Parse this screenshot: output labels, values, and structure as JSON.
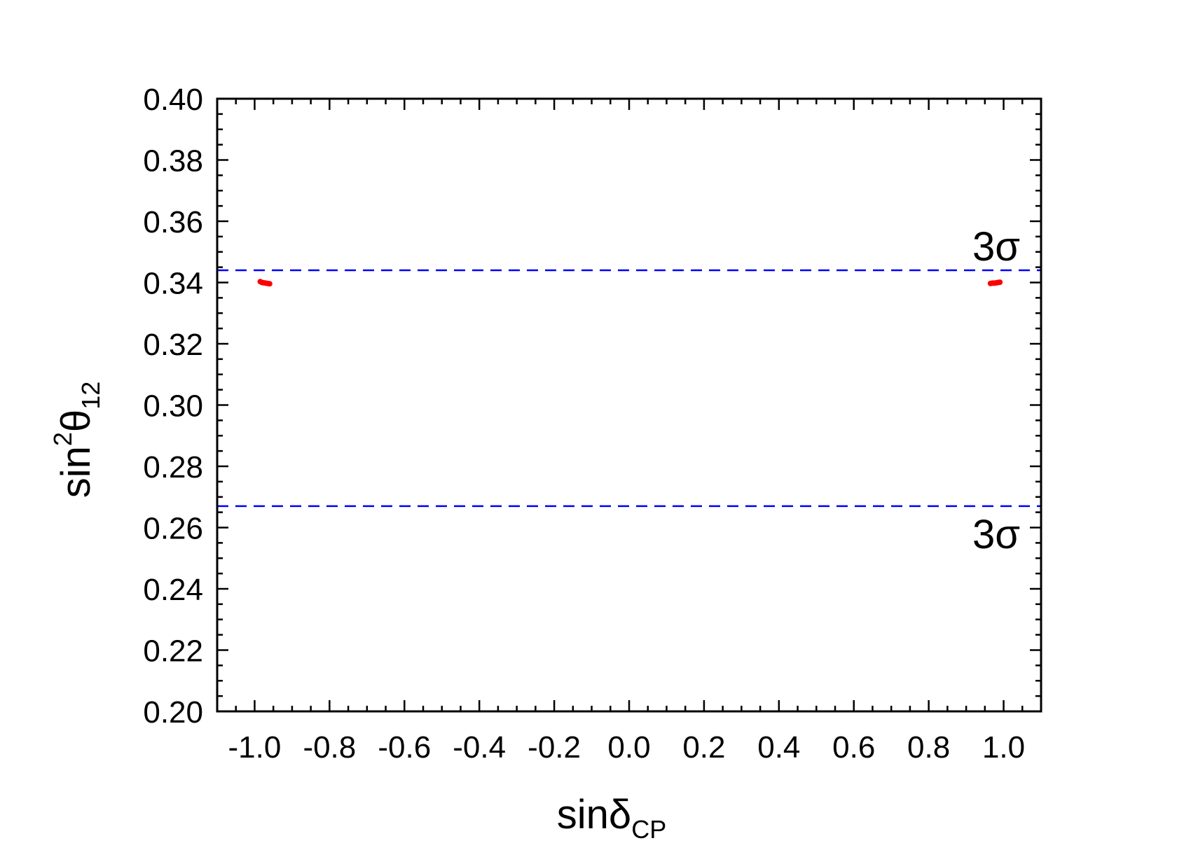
{
  "chart_data": {
    "type": "scatter",
    "title": "",
    "xlabel": {
      "main": "sin",
      "greek": "δ",
      "sub": "CP"
    },
    "ylabel": {
      "main": "sin",
      "sup": "2",
      "greek": "θ",
      "sub": "12"
    },
    "xlim": [
      -1.1,
      1.1
    ],
    "ylim": [
      0.2,
      0.4
    ],
    "x_ticks": [
      -1.0,
      -0.8,
      -0.6,
      -0.4,
      -0.2,
      0.0,
      0.2,
      0.4,
      0.6,
      0.8,
      1.0
    ],
    "x_tick_labels": [
      "-1.0",
      "-0.8",
      "-0.6",
      "-0.4",
      "-0.2",
      "0.0",
      "0.2",
      "0.4",
      "0.6",
      "0.8",
      "1.0"
    ],
    "y_ticks": [
      0.2,
      0.22,
      0.24,
      0.26,
      0.28,
      0.3,
      0.32,
      0.34,
      0.36,
      0.38,
      0.4
    ],
    "y_tick_labels": [
      "0.20",
      "0.22",
      "0.24",
      "0.26",
      "0.28",
      "0.30",
      "0.32",
      "0.34",
      "0.36",
      "0.38",
      "0.40"
    ],
    "grid": false,
    "series": [
      {
        "color": "#ff0000",
        "points": [
          {
            "x": -0.985,
            "y": 0.3403
          },
          {
            "x": -0.98,
            "y": 0.34
          },
          {
            "x": -0.975,
            "y": 0.3399
          },
          {
            "x": -0.97,
            "y": 0.3398
          },
          {
            "x": -0.965,
            "y": 0.3397
          },
          {
            "x": -0.96,
            "y": 0.3396
          },
          {
            "x": 0.965,
            "y": 0.3397
          },
          {
            "x": 0.97,
            "y": 0.3398
          },
          {
            "x": 0.975,
            "y": 0.3398
          },
          {
            "x": 0.98,
            "y": 0.3399
          },
          {
            "x": 0.985,
            "y": 0.34
          },
          {
            "x": 0.99,
            "y": 0.3401
          }
        ]
      }
    ],
    "reference_lines": [
      {
        "y": 0.344,
        "color": "#0000ff",
        "style": "dashed",
        "label": "3σ",
        "label_position": "above"
      },
      {
        "y": 0.267,
        "color": "#0000ff",
        "style": "dashed",
        "label": "3σ",
        "label_position": "below"
      }
    ]
  }
}
